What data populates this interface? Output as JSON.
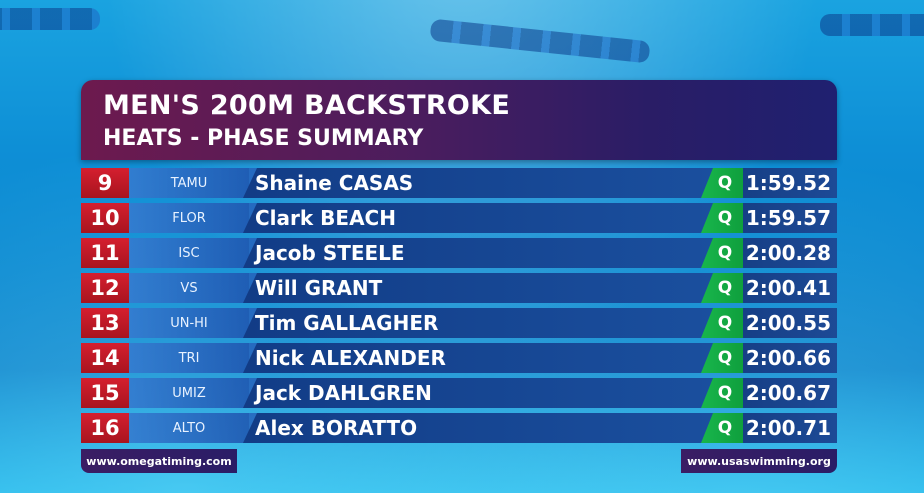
{
  "header": {
    "title": "MEN'S 200M BACKSTROKE",
    "subtitle": "HEATS - PHASE SUMMARY"
  },
  "rows": [
    {
      "rank": "9",
      "team": "TAMU",
      "name": "Shaine CASAS",
      "qualifier": "Q",
      "time": "1:59.52"
    },
    {
      "rank": "10",
      "team": "FLOR",
      "name": "Clark BEACH",
      "qualifier": "Q",
      "time": "1:59.57"
    },
    {
      "rank": "11",
      "team": "ISC",
      "name": "Jacob STEELE",
      "qualifier": "Q",
      "time": "2:00.28"
    },
    {
      "rank": "12",
      "team": "VS",
      "name": "Will GRANT",
      "qualifier": "Q",
      "time": "2:00.41"
    },
    {
      "rank": "13",
      "team": "UN-HI",
      "name": "Tim GALLAGHER",
      "qualifier": "Q",
      "time": "2:00.55"
    },
    {
      "rank": "14",
      "team": "TRI",
      "name": "Nick ALEXANDER",
      "qualifier": "Q",
      "time": "2:00.66"
    },
    {
      "rank": "15",
      "team": "UMIZ",
      "name": "Jack DAHLGREN",
      "qualifier": "Q",
      "time": "2:00.67"
    },
    {
      "rank": "16",
      "team": "ALTO",
      "name": "Alex BORATTO",
      "qualifier": "Q",
      "time": "2:00.71"
    }
  ],
  "footer": {
    "left_url": "www.omegatiming.com",
    "right_url": "www.usaswimming.org"
  },
  "colors": {
    "rank_red": "#d51f2f",
    "qualifier_green": "#18b64c",
    "header_purple": "#4a1d5e"
  }
}
